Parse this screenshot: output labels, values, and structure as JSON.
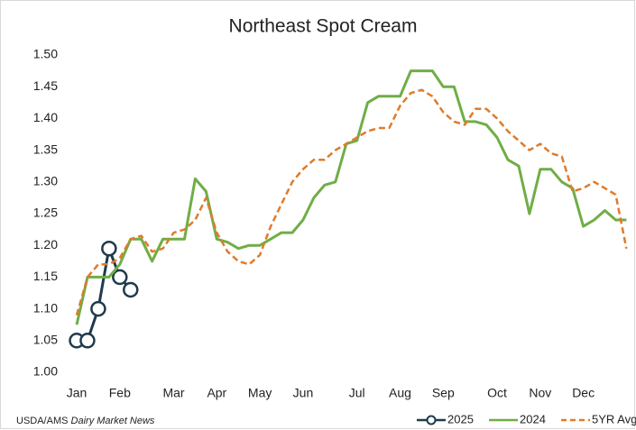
{
  "chart_data": {
    "type": "line",
    "title": "Northeast Spot Cream",
    "source_org": "USDA/AMS",
    "source_name": "Dairy Market News",
    "categories": [
      "Jan",
      null,
      null,
      null,
      "Feb",
      null,
      null,
      null,
      null,
      "Mar",
      null,
      null,
      null,
      "Apr",
      null,
      null,
      null,
      "May",
      null,
      null,
      null,
      "Jun",
      null,
      null,
      null,
      null,
      "Jul",
      null,
      null,
      null,
      "Aug",
      null,
      null,
      null,
      "Sep",
      null,
      null,
      null,
      null,
      "Oct",
      null,
      null,
      null,
      "Nov",
      null,
      null,
      null,
      "Dec",
      null,
      null,
      null,
      null
    ],
    "series": [
      {
        "name": "2025",
        "color": "#1f3a4d",
        "dash": false,
        "marker": "circle",
        "values": [
          1.05,
          1.05,
          1.1,
          1.195,
          1.15,
          1.13,
          null,
          null,
          null,
          null,
          null,
          null,
          null,
          null,
          null,
          null,
          null,
          null,
          null,
          null,
          null,
          null,
          null,
          null,
          null,
          null,
          null,
          null,
          null,
          null,
          null,
          null,
          null,
          null,
          null,
          null,
          null,
          null,
          null,
          null,
          null,
          null,
          null,
          null,
          null,
          null,
          null,
          null,
          null,
          null,
          null,
          null
        ]
      },
      {
        "name": "2024",
        "color": "#70ad47",
        "dash": false,
        "marker": "none",
        "values": [
          1.075,
          1.15,
          1.15,
          1.15,
          1.17,
          1.21,
          1.21,
          1.175,
          1.21,
          1.21,
          1.21,
          1.305,
          1.285,
          1.21,
          1.205,
          1.195,
          1.2,
          1.2,
          1.21,
          1.22,
          1.22,
          1.24,
          1.275,
          1.295,
          1.3,
          1.36,
          1.365,
          1.425,
          1.435,
          1.435,
          1.435,
          1.475,
          1.475,
          1.475,
          1.45,
          1.45,
          1.395,
          1.395,
          1.39,
          1.37,
          1.335,
          1.325,
          1.25,
          1.32,
          1.32,
          1.3,
          1.29,
          1.23,
          1.24,
          1.255,
          1.24,
          1.24
        ]
      },
      {
        "name": "5YR Avg",
        "color": "#e07b2a",
        "dash": true,
        "marker": "none",
        "values": [
          1.09,
          1.15,
          1.17,
          1.17,
          1.18,
          1.21,
          1.215,
          1.19,
          1.195,
          1.22,
          1.225,
          1.24,
          1.275,
          1.22,
          1.19,
          1.175,
          1.17,
          1.185,
          1.23,
          1.265,
          1.3,
          1.32,
          1.335,
          1.335,
          1.35,
          1.36,
          1.37,
          1.38,
          1.385,
          1.385,
          1.42,
          1.44,
          1.445,
          1.435,
          1.41,
          1.395,
          1.39,
          1.415,
          1.415,
          1.4,
          1.38,
          1.365,
          1.35,
          1.36,
          1.345,
          1.34,
          1.285,
          1.29,
          1.3,
          1.29,
          1.28,
          1.195
        ]
      }
    ],
    "ylim": [
      1.0,
      1.5
    ],
    "yticks": [
      {
        "value": 1.0,
        "label": "1.00"
      },
      {
        "value": 1.05,
        "label": "1.05"
      },
      {
        "value": 1.1,
        "label": "1.10"
      },
      {
        "value": 1.15,
        "label": "1.15"
      },
      {
        "value": 1.2,
        "label": "1.20"
      },
      {
        "value": 1.25,
        "label": "1.25"
      },
      {
        "value": 1.3,
        "label": "1.30"
      },
      {
        "value": 1.35,
        "label": "1.35"
      },
      {
        "value": 1.4,
        "label": "1.40"
      },
      {
        "value": 1.45,
        "label": "1.45"
      },
      {
        "value": 1.5,
        "label": "1.50"
      }
    ],
    "grid": false,
    "legend": "bottom-right"
  }
}
